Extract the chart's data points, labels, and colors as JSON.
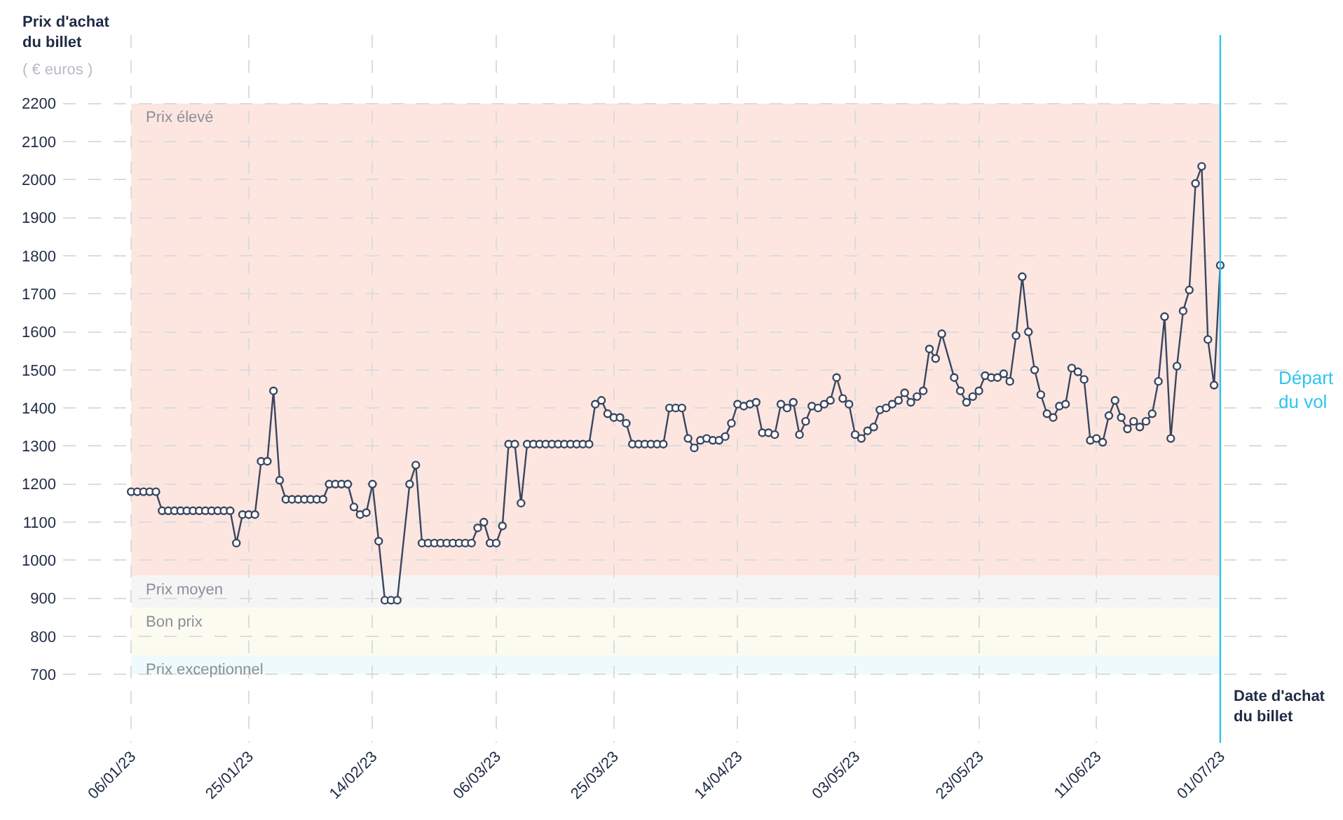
{
  "chart_data": {
    "type": "line",
    "ylabel": "Prix d'achat\ndu billet",
    "xlabel": "Date d'achat\ndu billet",
    "annotations": [
      "( € euros )"
    ],
    "x": [
      "2023-01-06",
      "2023-01-07",
      "2023-01-08",
      "2023-01-09",
      "2023-01-10",
      "2023-01-11",
      "2023-01-12",
      "2023-01-13",
      "2023-01-14",
      "2023-01-15",
      "2023-01-16",
      "2023-01-17",
      "2023-01-18",
      "2023-01-19",
      "2023-01-20",
      "2023-01-21",
      "2023-01-22",
      "2023-01-23",
      "2023-01-24",
      "2023-01-25",
      "2023-01-26",
      "2023-01-27",
      "2023-01-28",
      "2023-01-29",
      "2023-01-30",
      "2023-01-31",
      "2023-02-01",
      "2023-02-02",
      "2023-02-03",
      "2023-02-04",
      "2023-02-05",
      "2023-02-06",
      "2023-02-07",
      "2023-02-08",
      "2023-02-09",
      "2023-02-10",
      "2023-02-11",
      "2023-02-12",
      "2023-02-13",
      "2023-02-14",
      "2023-02-15",
      "2023-02-16",
      "2023-02-17",
      "2023-02-18",
      "2023-02-20",
      "2023-02-21",
      "2023-02-22",
      "2023-02-23",
      "2023-02-24",
      "2023-02-25",
      "2023-02-26",
      "2023-02-27",
      "2023-02-28",
      "2023-03-01",
      "2023-03-02",
      "2023-03-03",
      "2023-03-04",
      "2023-03-05",
      "2023-03-06",
      "2023-03-07",
      "2023-03-08",
      "2023-03-09",
      "2023-03-10",
      "2023-03-11",
      "2023-03-12",
      "2023-03-13",
      "2023-03-14",
      "2023-03-15",
      "2023-03-16",
      "2023-03-17",
      "2023-03-18",
      "2023-03-19",
      "2023-03-20",
      "2023-03-21",
      "2023-03-22",
      "2023-03-23",
      "2023-03-24",
      "2023-03-25",
      "2023-03-26",
      "2023-03-27",
      "2023-03-28",
      "2023-03-29",
      "2023-03-30",
      "2023-03-31",
      "2023-04-01",
      "2023-04-02",
      "2023-04-03",
      "2023-04-04",
      "2023-04-05",
      "2023-04-06",
      "2023-04-07",
      "2023-04-08",
      "2023-04-09",
      "2023-04-10",
      "2023-04-11",
      "2023-04-12",
      "2023-04-13",
      "2023-04-14",
      "2023-04-15",
      "2023-04-16",
      "2023-04-17",
      "2023-04-18",
      "2023-04-19",
      "2023-04-20",
      "2023-04-21",
      "2023-04-22",
      "2023-04-23",
      "2023-04-24",
      "2023-04-25",
      "2023-04-26",
      "2023-04-27",
      "2023-04-28",
      "2023-04-29",
      "2023-04-30",
      "2023-05-01",
      "2023-05-02",
      "2023-05-03",
      "2023-05-04",
      "2023-05-05",
      "2023-05-06",
      "2023-05-07",
      "2023-05-08",
      "2023-05-09",
      "2023-05-10",
      "2023-05-11",
      "2023-05-12",
      "2023-05-13",
      "2023-05-14",
      "2023-05-15",
      "2023-05-16",
      "2023-05-17",
      "2023-05-19",
      "2023-05-20",
      "2023-05-21",
      "2023-05-22",
      "2023-05-23",
      "2023-05-24",
      "2023-05-25",
      "2023-05-26",
      "2023-05-27",
      "2023-05-28",
      "2023-05-29",
      "2023-05-30",
      "2023-05-31",
      "2023-06-01",
      "2023-06-02",
      "2023-06-03",
      "2023-06-04",
      "2023-06-05",
      "2023-06-06",
      "2023-06-07",
      "2023-06-08",
      "2023-06-09",
      "2023-06-10",
      "2023-06-11",
      "2023-06-12",
      "2023-06-13",
      "2023-06-14",
      "2023-06-15",
      "2023-06-16",
      "2023-06-17",
      "2023-06-18",
      "2023-06-19",
      "2023-06-20",
      "2023-06-21",
      "2023-06-22",
      "2023-06-23",
      "2023-06-24",
      "2023-06-25",
      "2023-06-26",
      "2023-06-27",
      "2023-06-28",
      "2023-06-29",
      "2023-06-30",
      "2023-07-01"
    ],
    "series": [
      {
        "color": "#3a4660",
        "values": [
          1180,
          1180,
          1180,
          1180,
          1180,
          1130,
          1130,
          1130,
          1130,
          1130,
          1130,
          1130,
          1130,
          1130,
          1130,
          1130,
          1130,
          1045,
          1120,
          1120,
          1120,
          1260,
          1260,
          1445,
          1210,
          1160,
          1160,
          1160,
          1160,
          1160,
          1160,
          1160,
          1200,
          1200,
          1200,
          1200,
          1140,
          1120,
          1125,
          1200,
          1050,
          895,
          895,
          895,
          1200,
          1250,
          1045,
          1045,
          1045,
          1045,
          1045,
          1045,
          1045,
          1045,
          1045,
          1085,
          1100,
          1045,
          1045,
          1090,
          1305,
          1305,
          1150,
          1305,
          1305,
          1305,
          1305,
          1305,
          1305,
          1305,
          1305,
          1305,
          1305,
          1305,
          1410,
          1420,
          1385,
          1375,
          1375,
          1360,
          1305,
          1305,
          1305,
          1305,
          1305,
          1305,
          1400,
          1400,
          1400,
          1320,
          1295,
          1315,
          1320,
          1315,
          1315,
          1325,
          1360,
          1410,
          1405,
          1410,
          1415,
          1335,
          1335,
          1330,
          1410,
          1400,
          1415,
          1330,
          1365,
          1405,
          1400,
          1410,
          1420,
          1480,
          1425,
          1410,
          1330,
          1320,
          1340,
          1350,
          1395,
          1400,
          1410,
          1420,
          1440,
          1415,
          1430,
          1445,
          1555,
          1530,
          1595,
          1480,
          1445,
          1415,
          1430,
          1445,
          1485,
          1480,
          1480,
          1490,
          1470,
          1590,
          1745,
          1600,
          1500,
          1435,
          1385,
          1375,
          1405,
          1410,
          1505,
          1495,
          1475,
          1315,
          1320,
          1310,
          1380,
          1420,
          1375,
          1345,
          1365,
          1350,
          1365,
          1385,
          1470,
          1640,
          1320,
          1510,
          1655,
          1710,
          1990,
          2035,
          1580,
          1460,
          1775
        ]
      }
    ],
    "xlim": [
      "2022-12-26",
      "2023-07-12"
    ],
    "xticks": [
      {
        "value": "2023-01-06",
        "label": "06/01/23"
      },
      {
        "value": "2023-01-25",
        "label": "25/01/23"
      },
      {
        "value": "2023-02-14",
        "label": "14/02/23"
      },
      {
        "value": "2023-03-06",
        "label": "06/03/23"
      },
      {
        "value": "2023-03-25",
        "label": "25/03/23"
      },
      {
        "value": "2023-04-14",
        "label": "14/04/23"
      },
      {
        "value": "2023-05-03",
        "label": "03/05/23"
      },
      {
        "value": "2023-05-23",
        "label": "23/05/23"
      },
      {
        "value": "2023-06-11",
        "label": "11/06/23"
      },
      {
        "value": "2023-07-01",
        "label": "01/07/23"
      }
    ],
    "ylim": [
      520,
      2380
    ],
    "yticks": [
      700,
      800,
      900,
      1000,
      1100,
      1200,
      1300,
      1400,
      1500,
      1600,
      1700,
      1800,
      1900,
      2000,
      2100,
      2200
    ],
    "bands": [
      {
        "axis": "y",
        "from": 960,
        "to": 2200,
        "label": "Prix élevé",
        "color": "#fde6e0"
      },
      {
        "axis": "y",
        "from": 875,
        "to": 960,
        "label": "Prix moyen",
        "color": "#f5f5f5"
      },
      {
        "axis": "y",
        "from": 750,
        "to": 875,
        "label": "Bon prix",
        "color": "#fbfbef"
      },
      {
        "axis": "y",
        "from": 700,
        "to": 750,
        "label": "Prix exceptionnel",
        "color": "#effafd"
      }
    ],
    "ref_lines": [
      {
        "axis": "x",
        "value": "2023-07-01",
        "label": "Départ\ndu vol",
        "color": "#2ec4f0",
        "line_style": "solid"
      }
    ],
    "grid": true,
    "marker": "circle",
    "line_style": "solid"
  }
}
